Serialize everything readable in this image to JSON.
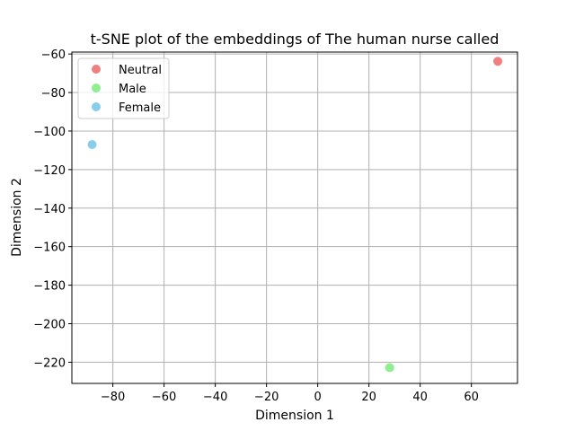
{
  "chart_data": {
    "type": "scatter",
    "title": "t-SNE plot of the embeddings of The human nurse called",
    "xlabel": "Dimension 1",
    "ylabel": "Dimension 2",
    "xlim": [
      -96,
      78
    ],
    "ylim": [
      -231,
      -59
    ],
    "xticks": [
      -80,
      -60,
      -40,
      -20,
      0,
      20,
      40,
      60
    ],
    "yticks": [
      -60,
      -80,
      -100,
      -120,
      -140,
      -160,
      -180,
      -200,
      -220
    ],
    "xtick_labels": [
      "−80",
      "−60",
      "−40",
      "−20",
      "0",
      "20",
      "40",
      "60"
    ],
    "ytick_labels": [
      "−60",
      "−80",
      "−100",
      "−120",
      "−140",
      "−160",
      "−180",
      "−200",
      "−220"
    ],
    "grid": true,
    "legend_position": "top-left",
    "series": [
      {
        "name": "Neutral",
        "color": "#f08080",
        "points": [
          [
            70.3,
            -63.8
          ]
        ]
      },
      {
        "name": "Male",
        "color": "#90ee90",
        "points": [
          [
            28.1,
            -222.8
          ]
        ]
      },
      {
        "name": "Female",
        "color": "#87ceeb",
        "points": [
          [
            -88.1,
            -107.0
          ]
        ]
      }
    ]
  }
}
